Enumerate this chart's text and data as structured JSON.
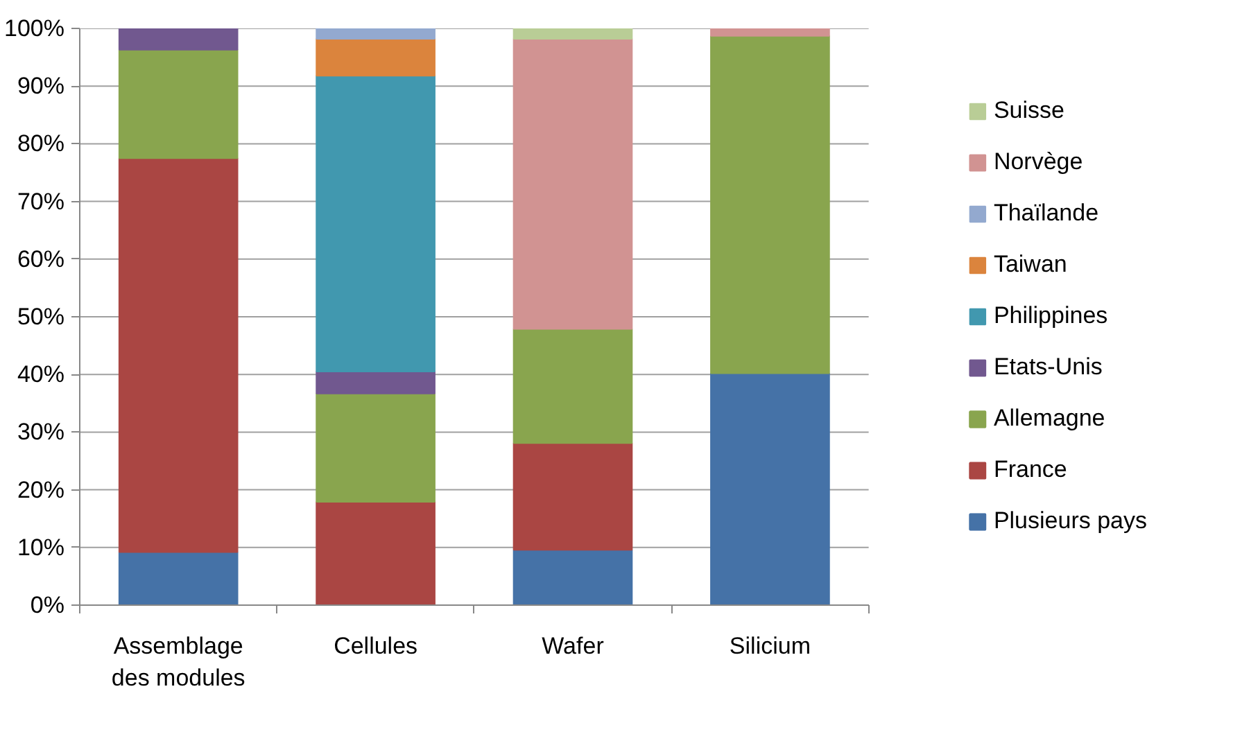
{
  "chart_data": {
    "type": "bar",
    "stacked": true,
    "categories": [
      "Assemblage des modules",
      "Cellules",
      "Wafer",
      "Silicium"
    ],
    "series": [
      {
        "name": "Plusieurs pays",
        "color": "#4572a7",
        "values": [
          9.2,
          0,
          9.6,
          40.2
        ]
      },
      {
        "name": "France",
        "color": "#aa4643",
        "values": [
          68.3,
          17.9,
          18.5,
          0
        ]
      },
      {
        "name": "Allemagne",
        "color": "#89a54e",
        "values": [
          18.8,
          18.8,
          19.8,
          58.5
        ]
      },
      {
        "name": "Etats-Unis",
        "color": "#71588f",
        "values": [
          3.7,
          3.8,
          0,
          0
        ]
      },
      {
        "name": "Philippines",
        "color": "#4198af",
        "values": [
          0,
          51.3,
          0,
          0
        ]
      },
      {
        "name": "Taiwan",
        "color": "#db843d",
        "values": [
          0,
          6.4,
          0,
          0
        ]
      },
      {
        "name": "Thaïlande",
        "color": "#93a9cf",
        "values": [
          0,
          1.8,
          0,
          0
        ]
      },
      {
        "name": "Norvège",
        "color": "#d19392",
        "values": [
          0,
          0,
          50.3,
          1.3
        ]
      },
      {
        "name": "Suisse",
        "color": "#b9cd96",
        "values": [
          0,
          0,
          1.8,
          0
        ]
      }
    ],
    "ylim": [
      0,
      100
    ],
    "yticks": [
      {
        "value": 0,
        "label": "0%"
      },
      {
        "value": 10,
        "label": "10%"
      },
      {
        "value": 20,
        "label": "20%"
      },
      {
        "value": 30,
        "label": "30%"
      },
      {
        "value": 40,
        "label": "40%"
      },
      {
        "value": 50,
        "label": "50%"
      },
      {
        "value": 60,
        "label": "60%"
      },
      {
        "value": 70,
        "label": "70%"
      },
      {
        "value": 80,
        "label": "80%"
      },
      {
        "value": 90,
        "label": "90%"
      },
      {
        "value": 100,
        "label": "100%"
      }
    ],
    "grid": "y",
    "legend": "right"
  }
}
